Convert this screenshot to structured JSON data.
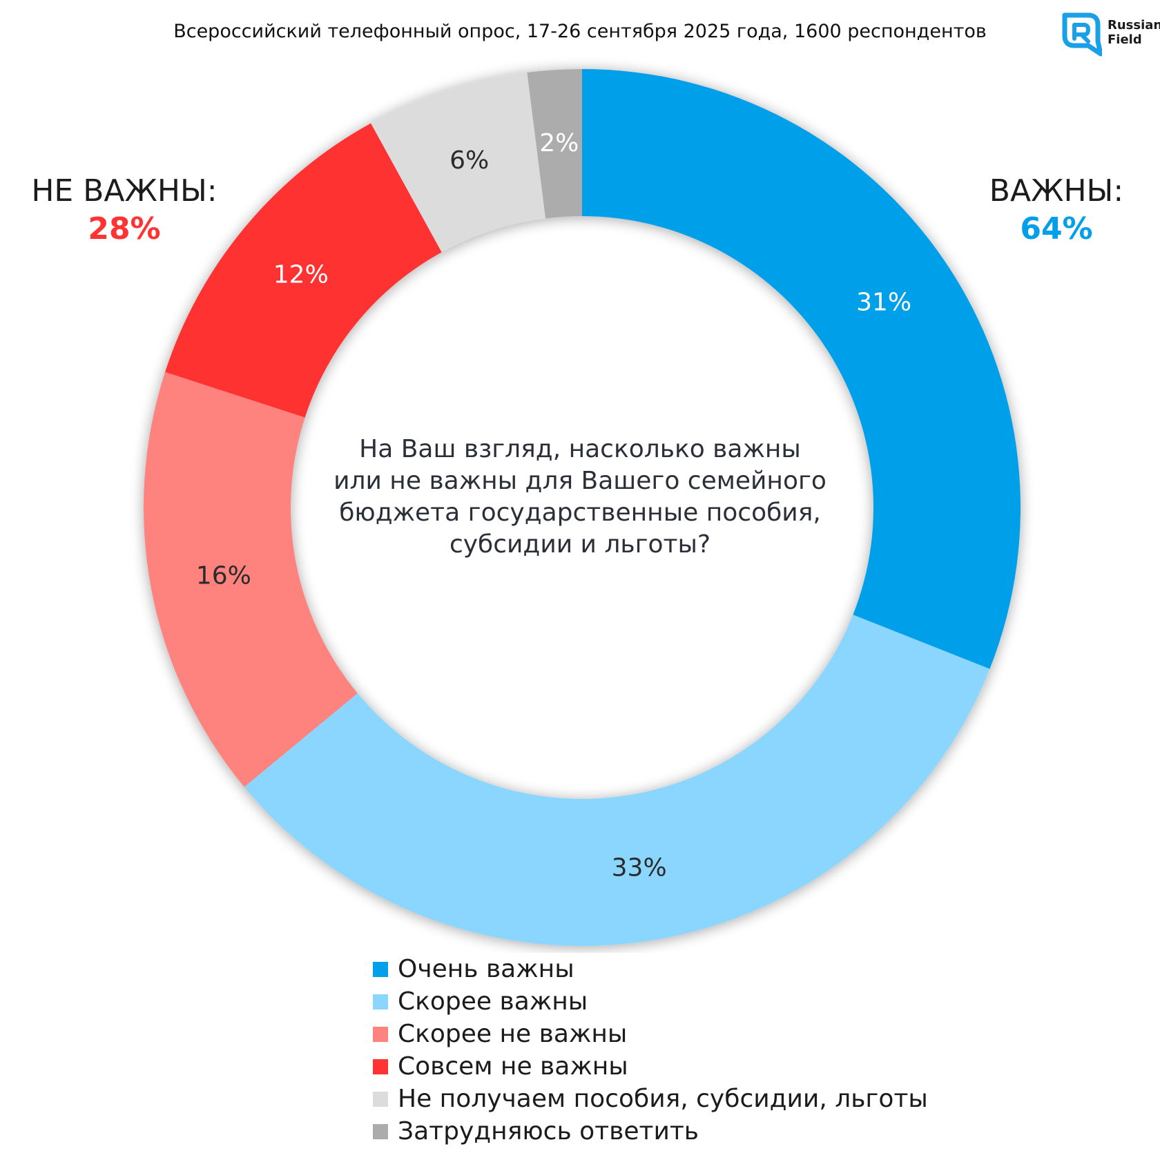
{
  "header": {
    "subtitle": "Всероссийский телефонный опрос, 17-26 сентября 2025 года, 1600 респондентов"
  },
  "logo": {
    "line1": "Russian",
    "line2": "Field"
  },
  "groups": {
    "important": {
      "label": "ВАЖНЫ:",
      "value": "64%",
      "color": "#049fea"
    },
    "not_important": {
      "label": "НЕ ВАЖНЫ:",
      "value": "28%",
      "color": "#ff3333"
    }
  },
  "chart_data": {
    "type": "pie",
    "donut": true,
    "title": "На Ваш взгляд, насколько важны или не важны для Вашего семейного бюджета государственные пособия, субсидии и льготы?",
    "categories": [
      "Очень важны",
      "Скорее важны",
      "Скорее не важны",
      "Совсем не важны",
      "Не получаем пособия, субсидии, льготы",
      "Затрудняюсь ответить"
    ],
    "values": [
      31,
      33,
      16,
      12,
      6,
      2
    ],
    "value_labels": [
      "31%",
      "33%",
      "16%",
      "12%",
      "6%",
      "2%"
    ],
    "colors": [
      "#049fea",
      "#8ad6fe",
      "#fe827d",
      "#ff3333",
      "#dcdcdc",
      "#acacac"
    ],
    "label_colors": [
      "#ffffff",
      "#2b2b2b",
      "#2b2b2b",
      "#ffffff",
      "#2b2b2b",
      "#ffffff"
    ],
    "start_angle": "top",
    "direction": "clockwise",
    "legend_position": "bottom"
  }
}
